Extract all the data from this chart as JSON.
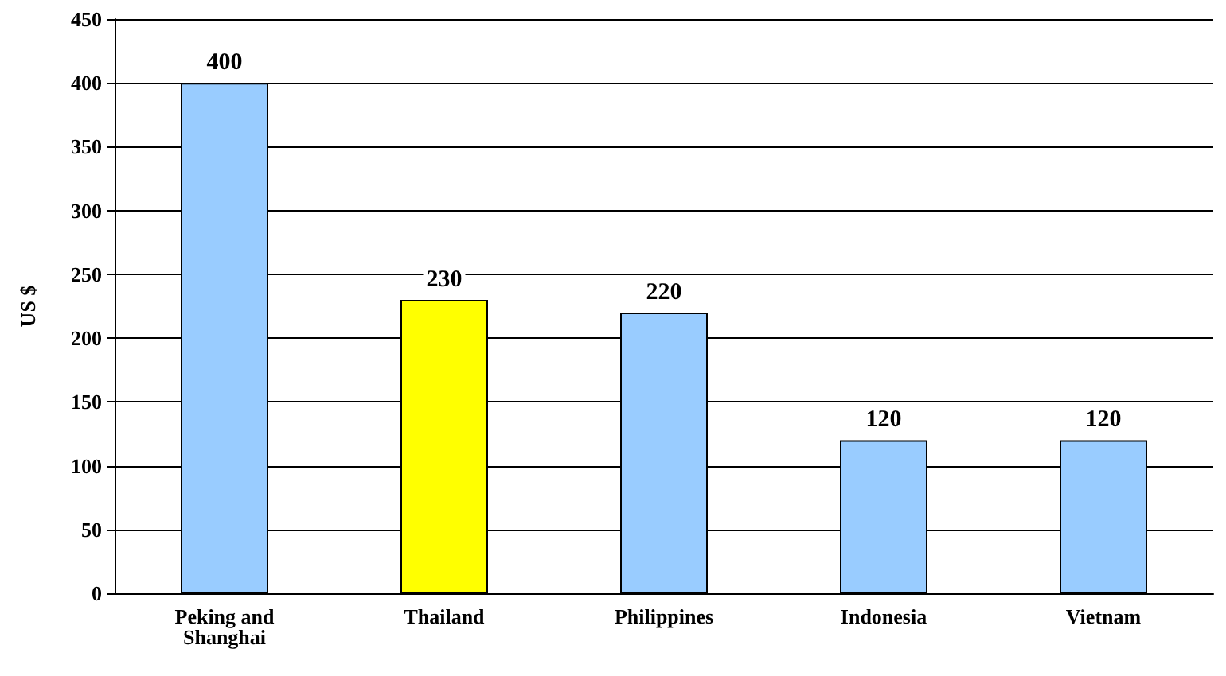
{
  "chart_data": {
    "type": "bar",
    "ylabel": "US $",
    "categories": [
      "Peking and\nShanghai",
      "Thailand",
      "Philippines",
      "Indonesia",
      "Vietnam"
    ],
    "values": [
      400,
      230,
      220,
      120,
      120
    ],
    "colors": [
      "#99ccff",
      "#ffff00",
      "#99ccff",
      "#99ccff",
      "#99ccff"
    ],
    "ylim": [
      0,
      450
    ],
    "yticks": [
      0,
      50,
      100,
      150,
      200,
      250,
      300,
      350,
      400,
      450
    ],
    "grid": "y",
    "data_labels": true
  }
}
